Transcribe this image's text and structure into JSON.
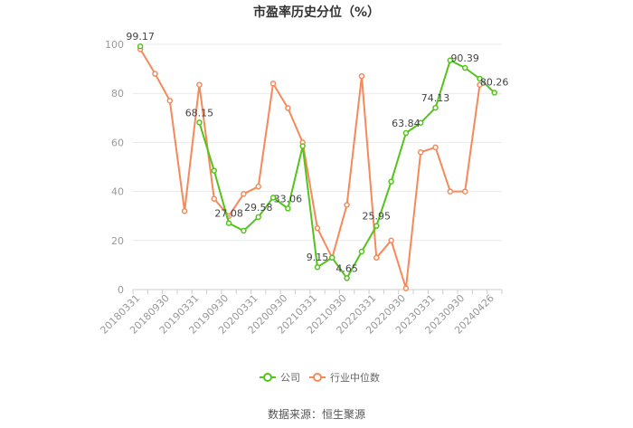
{
  "chart_data": {
    "type": "line",
    "title": "市盈率历史分位（%）",
    "xlabel": "",
    "ylabel": "",
    "ylim": [
      0,
      100
    ],
    "yticks": [
      0,
      20,
      40,
      60,
      80,
      100
    ],
    "grid": "horizontal",
    "x": [
      "20180331",
      "20180630",
      "20180930",
      "20181231",
      "20190331",
      "20190630",
      "20190930",
      "20191231",
      "20200331",
      "20200630",
      "20200930",
      "20201231",
      "20210331",
      "20210630",
      "20210930",
      "20211231",
      "20220331",
      "20220630",
      "20220930",
      "20221231",
      "20230331",
      "20230630",
      "20230930",
      "20231231",
      "20240426"
    ],
    "xtick_labels": [
      "20180331",
      "20180930",
      "20190331",
      "20190930",
      "20200331",
      "20200930",
      "20210331",
      "20210930",
      "20220331",
      "20220930",
      "20230331",
      "20230930",
      "20240426"
    ],
    "series": [
      {
        "name": "公司",
        "color": "#52c41a",
        "values": [
          99.17,
          null,
          null,
          null,
          68.15,
          48.5,
          27.08,
          24.0,
          29.58,
          37.5,
          33.06,
          58.5,
          9.15,
          13.0,
          4.65,
          15.5,
          25.95,
          44.0,
          63.84,
          68.0,
          74.13,
          93.5,
          90.39,
          86.0,
          80.26
        ],
        "labels": {
          "0": "99.17",
          "4": "68.15",
          "6": "27.08",
          "8": "29.58",
          "10": "33.06",
          "12": "9.15",
          "14": "4.65",
          "16": "25.95",
          "18": "63.84",
          "20": "74.13",
          "22": "90.39",
          "24": "80.26"
        }
      },
      {
        "name": "行业中位数",
        "color": "#f5895a",
        "values": [
          98.0,
          88.0,
          77.0,
          32.0,
          83.5,
          37.0,
          30.0,
          39.0,
          42.0,
          84.0,
          74.0,
          60.0,
          25.0,
          13.0,
          34.5,
          87.0,
          13.0,
          20.0,
          0.5,
          56.0,
          58.0,
          40.0,
          40.0,
          83.5,
          null
        ]
      }
    ],
    "legend_position": "bottom"
  },
  "footer": {
    "source": "数据来源：恒生聚源"
  }
}
